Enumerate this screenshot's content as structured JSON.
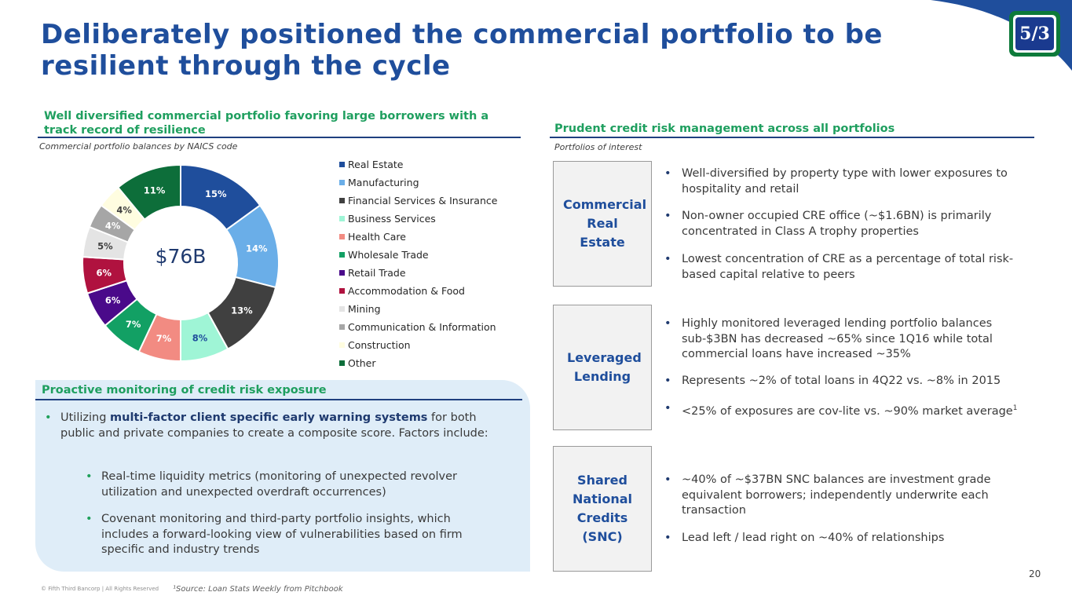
{
  "header": {
    "title_line1": "Deliberately positioned the commercial portfolio to be",
    "title_line2": "resilient through the cycle",
    "logo_text": "5/3"
  },
  "left_section": {
    "title_line1": "Well diversified commercial portfolio favoring large borrowers with a",
    "title_line2": "track record of resilience",
    "caption": "Commercial portfolio balances by NAICS code",
    "center_label": "$76B"
  },
  "chart_data": {
    "type": "pie",
    "donut": true,
    "categories": [
      "Real Estate",
      "Manufacturing",
      "Financial Services & Insurance",
      "Business Services",
      "Health Care",
      "Wholesale Trade",
      "Retail Trade",
      "Accommodation & Food",
      "Mining",
      "Communication & Information",
      "Construction",
      "Other"
    ],
    "values": [
      15,
      14,
      13,
      8,
      7,
      7,
      6,
      6,
      5,
      4,
      4,
      11
    ],
    "data_labels": [
      "15%",
      "14%",
      "13%",
      "8%",
      "7%",
      "7%",
      "6%",
      "6%",
      "5%",
      "4%",
      "4%",
      "11%"
    ],
    "colors": [
      "#1f4e9c",
      "#6aaee8",
      "#404040",
      "#9ff5d6",
      "#f28b82",
      "#12a064",
      "#4a0a8a",
      "#b0123f",
      "#e4e4e4",
      "#a6a6a6",
      "#fffde0",
      "#0d6e3a"
    ],
    "label_colors": [
      "#ffffff",
      "#ffffff",
      "#ffffff",
      "#1f4e9c",
      "#ffffff",
      "#ffffff",
      "#ffffff",
      "#ffffff",
      "#404040",
      "#ffffff",
      "#404040",
      "#ffffff"
    ],
    "legend_position": "right"
  },
  "monitoring": {
    "title": "Proactive monitoring of credit risk exposure",
    "b1_pre": "Utilizing ",
    "b1_bold": "multi-factor client specific early warning systems",
    "b1_post": " for both public and private companies to create a composite score. Factors include:",
    "b2": "Real-time liquidity metrics (monitoring of unexpected revolver utilization and unexpected overdraft occurrences)",
    "b3": "Covenant monitoring and third-party portfolio insights, which includes a forward-looking view of vulnerabilities based on firm specific and industry trends",
    "bullet": "•"
  },
  "right_section": {
    "title": "Prudent credit risk management across all portfolios",
    "caption": "Portfolios of interest",
    "portfolios": [
      {
        "label": "Commercial Real Estate",
        "bullets": [
          "Well-diversified by property type with lower exposures to hospitality and retail",
          "Non-owner occupied CRE office (~$1.6BN) is primarily concentrated in Class A trophy properties",
          "Lowest concentration of CRE as a percentage of total risk-based capital relative to peers"
        ]
      },
      {
        "label": "Leveraged Lending",
        "bullets": [
          "Highly monitored leveraged lending portfolio balances sub-$3BN has decreased ~65% since 1Q16 while total commercial loans have increased ~35%",
          "Represents ~2% of total loans in 4Q22 vs. ~8% in 2015",
          "<25% of exposures are cov-lite vs. ~90% market average"
        ],
        "footnote_mark": "1"
      },
      {
        "label": "Shared National Credits (SNC)",
        "bullets": [
          "~40% of ~$37BN SNC balances are investment grade equivalent borrowers; independently underwrite each transaction",
          "Lead left / lead right on ~40% of relationships"
        ]
      }
    ]
  },
  "footer": {
    "copyright": "© Fifth Third Bancorp | All Rights Reserved",
    "source": "¹Source: Loan Stats Weekly from Pitchbook",
    "page_number": "20"
  }
}
